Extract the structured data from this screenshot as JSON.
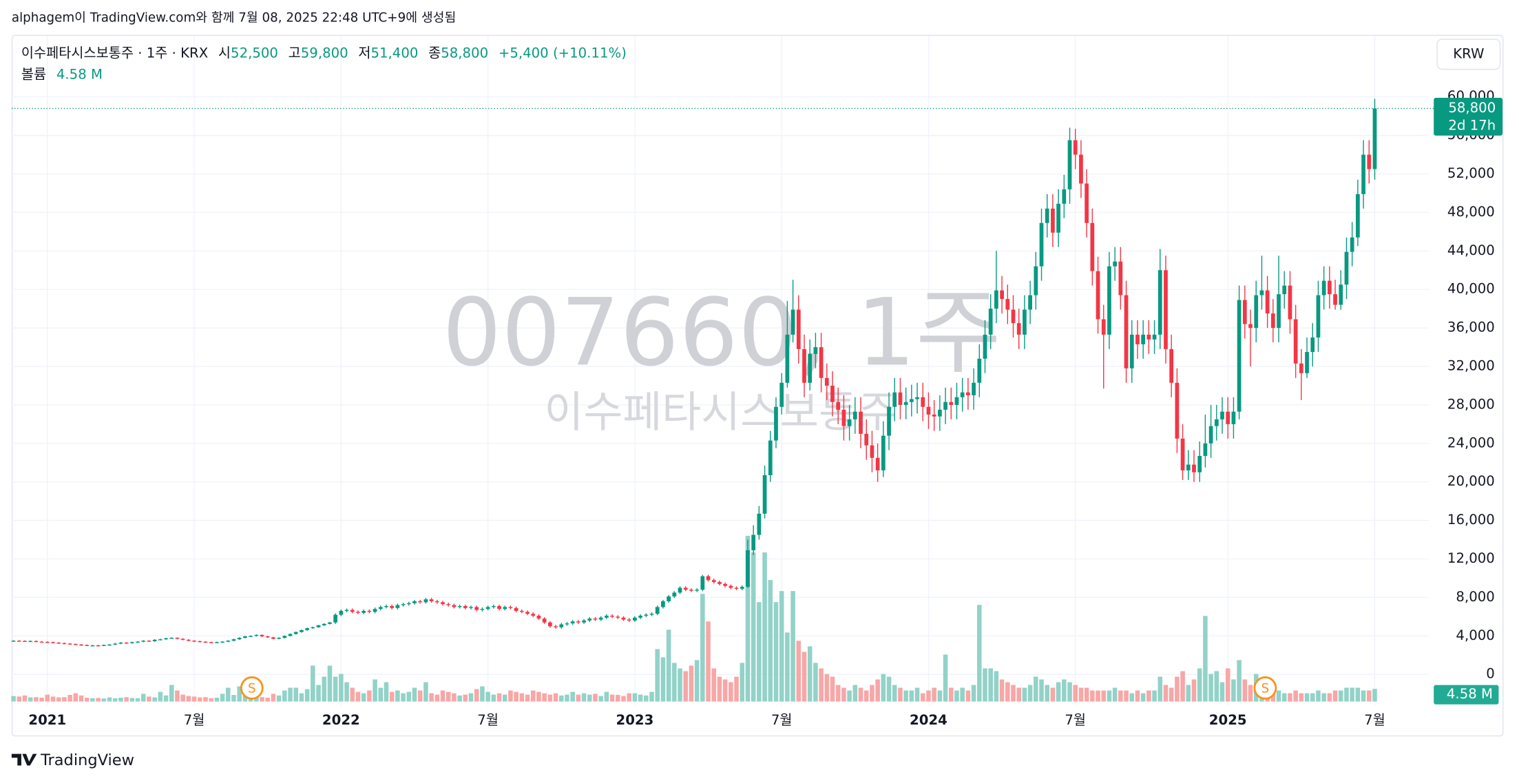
{
  "caption": "alphagem이 TradingView.com와 함께 7월 08, 2025 22:48 UTC+9에 생성됨",
  "footer": {
    "brand": "TradingView"
  },
  "chart_data": {
    "type": "candlestick",
    "title": "이수페타시스보통주 · 1주 · KRX",
    "header": {
      "open_label": "시",
      "open": "52,500",
      "high_label": "고",
      "high": "59,800",
      "low_label": "저",
      "low": "51,400",
      "close_label": "종",
      "close": "58,800",
      "change": "+5,400 (+10.11%)",
      "volume_label": "볼륨",
      "volume": "4.58 M",
      "countdown": "2d 17h"
    },
    "currency": "KRW",
    "watermark": "007660, 1주",
    "watermark_subtitle": "이수페타시스보통주",
    "events": [
      "S",
      "S"
    ],
    "up_color": "#089981",
    "down_color": "#f23645",
    "up_volume_color": "#92d2c8",
    "down_volume_color": "#f7a7a6",
    "grid": true,
    "ylim": [
      -3220,
      66040
    ],
    "yticks": [
      0,
      {
        "value": 4000,
        "label": "4,000"
      },
      {
        "value": 8000,
        "label": "8,000"
      },
      {
        "value": 12000,
        "label": "12,000"
      },
      {
        "value": 16000,
        "label": "16,000"
      },
      {
        "value": 20000,
        "label": "20,000"
      },
      {
        "value": 24000,
        "label": "24,000"
      },
      {
        "value": 28000,
        "label": "28,000"
      },
      {
        "value": 32000,
        "label": "32,000"
      },
      {
        "value": 36000,
        "label": "36,000"
      },
      {
        "value": 40000,
        "label": "40,000"
      },
      {
        "value": 44000,
        "label": "44,000"
      },
      {
        "value": 48000,
        "label": "48,000"
      },
      {
        "value": 52000,
        "label": "52,000"
      },
      {
        "value": 56000,
        "label": "56,000"
      },
      {
        "value": 60000,
        "label": "60,000"
      }
    ],
    "volume_ylim": [
      0,
      100
    ],
    "categories": [
      null,
      null,
      null,
      null,
      null,
      null,
      "2021",
      null,
      null,
      null,
      null,
      null,
      null,
      null,
      null,
      null,
      null,
      null,
      null,
      null,
      null,
      null,
      null,
      null,
      null,
      null,
      null,
      null,
      null,
      null,
      null,
      null,
      "7월",
      null,
      null,
      null,
      null,
      null,
      null,
      null,
      null,
      null,
      null,
      null,
      null,
      null,
      null,
      null,
      null,
      null,
      null,
      null,
      null,
      null,
      null,
      null,
      null,
      null,
      "2022",
      null,
      null,
      null,
      null,
      null,
      null,
      null,
      null,
      null,
      null,
      null,
      null,
      null,
      null,
      null,
      null,
      null,
      null,
      null,
      null,
      null,
      null,
      null,
      null,
      null,
      "7월",
      null,
      null,
      null,
      null,
      null,
      null,
      null,
      null,
      null,
      null,
      null,
      null,
      null,
      null,
      null,
      null,
      null,
      null,
      null,
      null,
      null,
      null,
      null,
      null,
      null,
      "2023",
      null,
      null,
      null,
      null,
      null,
      null,
      null,
      null,
      null,
      null,
      null,
      null,
      null,
      null,
      null,
      null,
      null,
      null,
      null,
      null,
      null,
      null,
      null,
      null,
      null,
      "7월",
      null,
      null,
      null,
      null,
      null,
      null,
      null,
      null,
      null,
      null,
      null,
      null,
      null,
      null,
      null,
      null,
      null,
      null,
      null,
      null,
      null,
      null,
      null,
      null,
      null,
      "2024",
      null,
      null,
      null,
      null,
      null,
      null,
      null,
      null,
      null,
      null,
      null,
      null,
      null,
      null,
      null,
      null,
      null,
      null,
      null,
      null,
      null,
      null,
      null,
      null,
      null,
      "7월",
      null,
      null,
      null,
      null,
      null,
      null,
      null,
      null,
      null,
      null,
      null,
      null,
      null,
      null,
      null,
      null,
      null,
      null,
      null,
      null,
      null,
      null,
      null,
      null,
      null,
      null,
      "2025",
      null,
      null,
      null,
      null,
      null,
      null,
      null,
      null,
      null,
      null,
      null,
      null,
      null,
      null,
      null,
      null,
      null,
      null,
      null,
      null,
      null,
      null,
      null,
      null,
      null,
      "7월"
    ],
    "open": [
      3480,
      3500,
      3480,
      3450,
      3470,
      3400,
      3380,
      3350,
      3300,
      3250,
      3200,
      3150,
      3100,
      3050,
      3000,
      3020,
      3000,
      3050,
      3100,
      3200,
      3300,
      3250,
      3350,
      3400,
      3500,
      3450,
      3600,
      3650,
      3750,
      3800,
      3700,
      3600,
      3500,
      3450,
      3400,
      3350,
      3300,
      3350,
      3400,
      3500,
      3650,
      3800,
      3950,
      4000,
      4100,
      3950,
      3850,
      3700,
      3800,
      4000,
      4200,
      4400,
      4600,
      4800,
      4900,
      5100,
      5250,
      5400,
      6200,
      6600,
      6700,
      6500,
      6400,
      6600,
      6500,
      6800,
      7000,
      7100,
      6900,
      7200,
      7300,
      7400,
      7600,
      7500,
      7800,
      7600,
      7500,
      7300,
      7200,
      7000,
      7100,
      6900,
      7000,
      6700,
      6800,
      7000,
      7100,
      6800,
      7000,
      6900,
      6600,
      6500,
      6300,
      6100,
      5800,
      5400,
      5000,
      4900,
      5200,
      5300,
      5500,
      5400,
      5600,
      5800,
      5700,
      5900,
      6100,
      6000,
      5900,
      5700,
      5600,
      5900,
      6100,
      6200,
      6300,
      7000,
      7600,
      8100,
      8500,
      9000,
      8800,
      8700,
      8800,
      10200,
      9800,
      9600,
      9400,
      9200,
      9000,
      8900,
      9100,
      12900,
      14500,
      16700,
      20700,
      24300,
      27800,
      30300,
      35300,
      37900,
      33800,
      30300,
      33300,
      34000,
      30800,
      30000,
      28300,
      27500,
      25800,
      26500,
      27300,
      25000,
      23800,
      22500,
      21200,
      24800,
      27800,
      29300,
      28000,
      28300,
      28600,
      28800,
      27800,
      27000,
      26800,
      27500,
      28300,
      28000,
      28800,
      29300,
      29000,
      30300,
      32800,
      35300,
      38000,
      39900,
      39000,
      37900,
      36500,
      35300,
      37900,
      39400,
      42400,
      46900,
      48400,
      45900,
      48900,
      50400,
      55500,
      54000,
      51000,
      46900,
      41900,
      36900,
      35300,
      42400,
      42900,
      39400,
      31800,
      35300,
      34300,
      35300,
      34800,
      35300,
      42000,
      33800,
      30300,
      24500,
      21200,
      21800,
      21000,
      22700,
      24000,
      25800,
      26500,
      27300,
      26000,
      27300,
      38900,
      36400,
      36000,
      39400,
      39900,
      37500,
      36000,
      39500,
      40400,
      36900,
      32300,
      31300,
      33500,
      35000,
      39400,
      40900,
      39500,
      38400,
      40500,
      43900,
      45400,
      49900,
      54000,
      52500
    ],
    "high": [
      3560,
      3560,
      3540,
      3530,
      3530,
      3460,
      3440,
      3410,
      3360,
      3310,
      3260,
      3210,
      3160,
      3110,
      3080,
      3080,
      3110,
      3160,
      3260,
      3360,
      3360,
      3410,
      3460,
      3560,
      3560,
      3660,
      3710,
      3810,
      3860,
      3860,
      3760,
      3660,
      3560,
      3510,
      3460,
      3410,
      3410,
      3460,
      3560,
      3710,
      3860,
      4010,
      4060,
      4160,
      4160,
      4010,
      3910,
      3860,
      4060,
      4260,
      4460,
      4660,
      4860,
      4960,
      5160,
      5310,
      5460,
      6350,
      6750,
      6850,
      6850,
      6650,
      6750,
      6750,
      6950,
      7150,
      7250,
      7250,
      7350,
      7450,
      7550,
      7750,
      7750,
      7950,
      7950,
      7750,
      7650,
      7450,
      7350,
      7250,
      7250,
      7150,
      7150,
      6950,
      7150,
      7250,
      7250,
      7150,
      7150,
      7050,
      6750,
      6650,
      6450,
      6250,
      5950,
      5550,
      5150,
      5350,
      5450,
      5650,
      5650,
      5750,
      5950,
      5950,
      6050,
      6250,
      6250,
      6150,
      6050,
      5850,
      6050,
      6250,
      6350,
      6450,
      7150,
      7750,
      8250,
      8650,
      9150,
      9150,
      8950,
      8950,
      10350,
      10350,
      9950,
      9750,
      9550,
      9350,
      9150,
      9250,
      14000,
      15500,
      17500,
      21700,
      25300,
      28800,
      31300,
      38800,
      41000,
      39400,
      35300,
      34800,
      35500,
      35500,
      32300,
      31500,
      29800,
      29000,
      28000,
      28800,
      28800,
      26500,
      25300,
      24000,
      26300,
      29300,
      30800,
      30800,
      29800,
      30100,
      30300,
      30300,
      29300,
      28500,
      29000,
      29800,
      29800,
      30300,
      30800,
      30800,
      31800,
      34300,
      36800,
      39500,
      44000,
      41400,
      40500,
      39400,
      38000,
      39400,
      40900,
      43900,
      48400,
      49900,
      49900,
      50400,
      51900,
      56800,
      56700,
      55500,
      52500,
      48400,
      43400,
      38400,
      43900,
      44400,
      44400,
      40900,
      36800,
      36800,
      36800,
      36800,
      36800,
      44200,
      43500,
      35300,
      31800,
      26000,
      23300,
      23300,
      24200,
      27000,
      28000,
      28000,
      28800,
      28800,
      28800,
      40400,
      40400,
      37900,
      40900,
      43500,
      41400,
      39000,
      43500,
      41900,
      41900,
      38400,
      33800,
      35000,
      36500,
      40900,
      42400,
      42400,
      41000,
      42000,
      45400,
      47000,
      51400,
      55500,
      55500,
      59800
    ],
    "low": [
      3420,
      3420,
      3390,
      3390,
      3340,
      3320,
      3290,
      3240,
      3190,
      3140,
      3090,
      3040,
      2990,
      2940,
      2940,
      2940,
      2940,
      2990,
      3040,
      3140,
      3190,
      3190,
      3290,
      3340,
      3390,
      3390,
      3540,
      3590,
      3690,
      3640,
      3540,
      3440,
      3390,
      3340,
      3290,
      3240,
      3240,
      3290,
      3340,
      3440,
      3590,
      3740,
      3890,
      3940,
      3890,
      3790,
      3640,
      3640,
      3740,
      3940,
      4140,
      4340,
      4540,
      4740,
      4840,
      5040,
      5190,
      5250,
      6050,
      6450,
      6350,
      6250,
      6250,
      6350,
      6350,
      6650,
      6850,
      6750,
      6750,
      7050,
      7150,
      7250,
      7350,
      7350,
      7450,
      7350,
      7150,
      7050,
      6850,
      6850,
      6750,
      6750,
      6550,
      6550,
      6650,
      6850,
      6650,
      6650,
      6750,
      6450,
      6350,
      6150,
      5950,
      5650,
      5250,
      4850,
      4750,
      4750,
      5050,
      5150,
      5250,
      5250,
      5450,
      5550,
      5550,
      5750,
      5850,
      5750,
      5550,
      5450,
      5450,
      5750,
      5950,
      6050,
      6150,
      6850,
      7450,
      7950,
      8350,
      8650,
      8550,
      8550,
      8650,
      9650,
      9450,
      9250,
      9050,
      8850,
      8750,
      8750,
      9000,
      12400,
      14000,
      16200,
      20000,
      23500,
      27000,
      29800,
      34500,
      32300,
      28800,
      29500,
      31800,
      29300,
      28500,
      26800,
      26000,
      24300,
      24300,
      25000,
      23500,
      22300,
      21000,
      20000,
      20500,
      23300,
      26300,
      26500,
      26500,
      26800,
      27100,
      26300,
      25500,
      25300,
      25300,
      26000,
      26500,
      26500,
      27300,
      27500,
      27500,
      28800,
      31300,
      33800,
      36500,
      37500,
      36400,
      35000,
      33800,
      33800,
      36400,
      37900,
      40900,
      45400,
      44400,
      44400,
      47400,
      48900,
      52500,
      49500,
      45400,
      40400,
      35400,
      29700,
      33800,
      40900,
      37900,
      30300,
      30300,
      32800,
      32800,
      33300,
      33300,
      33800,
      32300,
      28800,
      23000,
      20200,
      20200,
      20000,
      20000,
      21500,
      22500,
      24300,
      25000,
      24500,
      24500,
      26500,
      34900,
      32000,
      34500,
      37900,
      36000,
      34500,
      34500,
      38000,
      35400,
      30800,
      28500,
      30800,
      32000,
      33500,
      37900,
      38000,
      37900,
      37900,
      39000,
      42400,
      44500,
      48400,
      51000,
      51400
    ],
    "close": [
      3500,
      3480,
      3450,
      3470,
      3400,
      3380,
      3350,
      3300,
      3250,
      3200,
      3150,
      3100,
      3050,
      3000,
      3020,
      3000,
      3050,
      3100,
      3200,
      3300,
      3250,
      3350,
      3400,
      3500,
      3450,
      3600,
      3650,
      3750,
      3800,
      3700,
      3600,
      3500,
      3450,
      3400,
      3350,
      3300,
      3350,
      3400,
      3500,
      3650,
      3800,
      3950,
      4000,
      4100,
      3950,
      3850,
      3700,
      3800,
      4000,
      4200,
      4400,
      4600,
      4800,
      4900,
      5100,
      5250,
      5400,
      6200,
      6600,
      6700,
      6500,
      6400,
      6600,
      6500,
      6800,
      7000,
      7100,
      6900,
      7200,
      7300,
      7400,
      7600,
      7500,
      7800,
      7600,
      7500,
      7300,
      7200,
      7000,
      7100,
      6900,
      7000,
      6700,
      6800,
      7000,
      7100,
      6800,
      7000,
      6900,
      6600,
      6500,
      6300,
      6100,
      5800,
      5400,
      5000,
      4900,
      5200,
      5300,
      5500,
      5400,
      5600,
      5800,
      5700,
      5900,
      6100,
      6000,
      5900,
      5700,
      5600,
      5900,
      6100,
      6200,
      6300,
      7000,
      7600,
      8100,
      8500,
      9000,
      8800,
      8700,
      8800,
      10200,
      9800,
      9600,
      9400,
      9200,
      9000,
      8900,
      9100,
      12900,
      14500,
      16700,
      20700,
      24300,
      27800,
      30300,
      35300,
      37900,
      33800,
      30300,
      33300,
      34000,
      30800,
      30000,
      28300,
      27500,
      25800,
      26500,
      27300,
      25000,
      23800,
      22500,
      21200,
      24800,
      27800,
      29300,
      28000,
      28300,
      28600,
      28800,
      27800,
      27000,
      26800,
      27500,
      28300,
      28000,
      28800,
      29300,
      29000,
      30300,
      32800,
      35300,
      38000,
      39900,
      39000,
      37900,
      36500,
      35300,
      37900,
      39400,
      42400,
      46900,
      48400,
      45900,
      48900,
      50400,
      55500,
      54000,
      51000,
      46900,
      41900,
      36900,
      35300,
      42400,
      42900,
      39400,
      31800,
      35300,
      34300,
      35300,
      34800,
      35300,
      42000,
      33800,
      30300,
      24500,
      21200,
      21800,
      21000,
      22700,
      24000,
      25800,
      26500,
      27300,
      26000,
      27300,
      38900,
      36400,
      36000,
      39400,
      39900,
      37500,
      36000,
      39500,
      40400,
      36900,
      32300,
      31300,
      33500,
      35000,
      39400,
      40900,
      39500,
      38400,
      40500,
      43900,
      45400,
      49900,
      54000,
      52500,
      58800
    ],
    "volume": [
      2,
      1.8,
      2.2,
      1.5,
      1.6,
      1.4,
      2.5,
      1.8,
      1.5,
      1.6,
      2.4,
      3,
      2.2,
      1.4,
      1.2,
      1.3,
      1.1,
      1.5,
      1.2,
      1.4,
      1.6,
      1.3,
      1.2,
      2.8,
      1.8,
      1.5,
      3.5,
      2.2,
      6,
      4,
      2.5,
      2,
      1.8,
      1.5,
      1.6,
      1.2,
      1.4,
      2.8,
      5,
      2.4,
      5.5,
      3.2,
      2.5,
      1.8,
      1.6,
      1.4,
      2.8,
      2.2,
      4,
      5,
      5,
      3,
      4.5,
      13,
      6,
      9,
      13,
      9,
      10,
      7,
      5,
      3.5,
      3,
      4,
      8,
      5,
      7,
      3.5,
      4,
      3,
      3.5,
      5,
      4,
      7,
      3,
      2.5,
      4,
      3.5,
      3,
      2.2,
      2.5,
      3,
      4.5,
      5.5,
      3.5,
      2.5,
      3,
      2.5,
      4,
      3.5,
      3,
      2.5,
      4,
      3.5,
      3,
      2.5,
      3,
      2.2,
      2.5,
      3.5,
      2.5,
      3,
      2.5,
      2.8,
      2,
      3.5,
      2.5,
      2.4,
      2,
      3,
      3,
      2.5,
      2.2,
      3.5,
      19,
      16,
      26,
      14,
      12,
      11,
      13,
      15,
      39,
      29,
      12,
      9,
      8,
      7,
      9,
      14,
      60,
      54,
      36,
      54,
      44,
      36,
      40,
      25,
      40,
      22,
      18,
      20,
      14,
      12,
      10,
      9,
      6,
      5,
      4,
      6,
      5,
      4,
      6,
      8,
      10,
      9,
      6,
      5,
      4,
      4,
      5,
      3,
      4,
      5,
      4,
      17,
      5,
      4,
      5,
      4,
      6,
      35,
      12,
      12,
      11,
      8,
      7,
      6,
      5,
      5,
      6,
      9,
      8,
      6,
      5,
      7,
      8,
      7,
      6,
      5,
      5,
      4,
      4,
      4,
      4,
      5,
      4,
      4,
      3,
      4,
      3,
      4,
      4,
      9,
      6,
      5,
      9,
      11,
      6,
      8,
      12,
      31,
      10,
      11,
      7,
      12,
      8,
      15,
      8,
      6,
      10,
      7,
      4,
      5,
      4,
      3,
      3,
      4,
      3,
      3,
      3,
      4,
      3,
      3,
      4,
      4,
      5,
      5,
      5,
      4,
      4,
      4.58
    ]
  }
}
